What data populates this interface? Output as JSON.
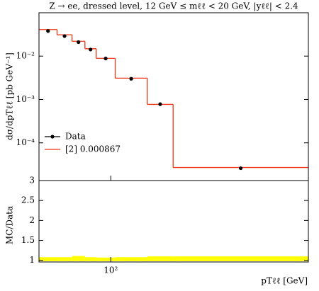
{
  "chart_data": [
    {
      "type": "step-histogram",
      "title": "Z → ee, dressed level, 12 GeV ≤ mℓℓ < 20 GeV, |yℓℓ| < 2.4",
      "y_label": "dσ/dpTℓℓ [pb GeV⁻¹]",
      "log_x": true,
      "log_y": true,
      "xlim": [
        45,
        900
      ],
      "ylim": [
        1.35e-05,
        0.1
      ],
      "yticks": [
        {
          "value": 0.0001,
          "label": "10⁻⁴"
        },
        {
          "value": 0.001,
          "label": "10⁻³"
        },
        {
          "value": 0.01,
          "label": "10⁻²"
        }
      ],
      "bins": [
        45,
        55,
        65,
        75,
        85,
        105,
        150,
        200,
        900
      ],
      "series": [
        {
          "name": "Data",
          "color": "#000000",
          "style": "points",
          "values": [
            0.038,
            0.029,
            0.021,
            0.0142,
            0.0088,
            0.003,
            0.00078,
            2.6e-05
          ]
        },
        {
          "name": "[2] 0.000867",
          "color": "#ee3311",
          "style": "step",
          "values": [
            0.041,
            0.031,
            0.022,
            0.0148,
            0.0089,
            0.0031,
            0.00077,
            2.7e-05
          ]
        }
      ],
      "legend": "lower left"
    },
    {
      "type": "band",
      "y_label": "MC/Data",
      "x_label": "pTℓℓ [GeV]",
      "log_x": true,
      "xlim": [
        45,
        900
      ],
      "ylim": [
        0.96,
        3
      ],
      "xticks": [
        {
          "value": 100,
          "label": "10²"
        }
      ],
      "yticks": [
        1,
        1.5,
        2,
        2.5,
        3
      ],
      "bins": [
        45,
        55,
        65,
        75,
        85,
        105,
        150,
        200,
        900
      ],
      "lower": [
        0.98,
        0.98,
        0.98,
        0.98,
        0.98,
        0.98,
        0.98,
        0.98
      ],
      "upper": [
        1.08,
        1.08,
        1.11,
        1.08,
        1.07,
        1.08,
        1.1,
        1.1
      ],
      "color": "#ffff00"
    }
  ]
}
